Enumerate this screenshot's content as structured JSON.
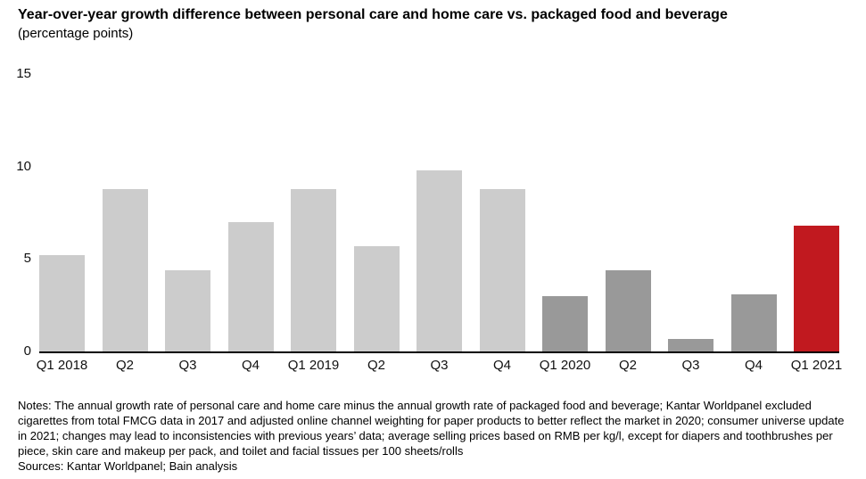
{
  "header": {
    "title": "Year-over-year growth difference between personal care and home care vs. packaged food and beverage",
    "subtitle": "(percentage points)"
  },
  "chart_data": {
    "type": "bar",
    "title": "Year-over-year growth difference between personal care and home care vs. packaged food and beverage",
    "ylabel": "percentage points",
    "xlabel": "",
    "categories": [
      "Q1 2018",
      "Q2",
      "Q3",
      "Q4",
      "Q1 2019",
      "Q2",
      "Q3",
      "Q4",
      "Q1 2020",
      "Q2",
      "Q3",
      "Q4",
      "Q1 2021"
    ],
    "values": [
      5.2,
      8.8,
      4.4,
      7.0,
      8.8,
      5.7,
      9.8,
      8.8,
      3.0,
      4.4,
      0.7,
      3.1,
      6.8
    ],
    "bar_colors": [
      "#cccccc",
      "#cccccc",
      "#cccccc",
      "#cccccc",
      "#cccccc",
      "#cccccc",
      "#cccccc",
      "#cccccc",
      "#999999",
      "#999999",
      "#999999",
      "#999999",
      "#c1191f"
    ],
    "ylim": [
      0,
      15
    ],
    "yticks": [
      0,
      5,
      10,
      15
    ],
    "grid": false,
    "legend_position": "none",
    "axis_line_color": "#000000"
  },
  "footer": {
    "notes": "Notes: The annual growth rate of personal care and home care minus the annual growth rate of packaged food and beverage; Kantar Worldpanel excluded cigarettes from total FMCG data in 2017 and adjusted online channel weighting for paper products to better reflect the market in 2020; consumer universe update in 2021; changes may lead to inconsistencies with previous years’ data; average selling prices based on RMB per kg/l, except for diapers and toothbrushes per piece, skin care and makeup per pack, and toilet and facial tissues per 100 sheets/rolls",
    "sources": "Sources: Kantar Worldpanel; Bain analysis"
  }
}
